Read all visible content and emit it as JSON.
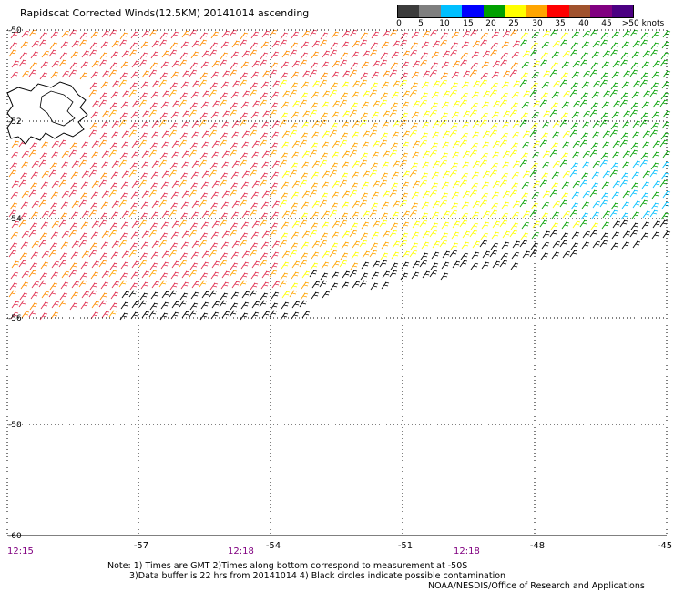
{
  "title": "Rapidscat Corrected Winds(12.5KM) 20141014 ascending",
  "legend": {
    "labels": [
      "0",
      "5",
      "10",
      "15",
      "20",
      "25",
      "30",
      "35",
      "40",
      "45",
      ">50 knots"
    ],
    "colors": [
      "#000000",
      "#7f7f7f",
      "#00bfff",
      "#0000ff",
      "#00a000",
      "#ffff00",
      "#ffa500",
      "#ff0000",
      "#8b0000",
      "#800080",
      "#4b0082"
    ]
  },
  "map": {
    "lat_labels": [
      "-50",
      "-52",
      "-54",
      "-56",
      "-58",
      "-60"
    ],
    "lon_labels": [
      "-57",
      "-54",
      "-51",
      "-48",
      "-45"
    ],
    "time_labels": [
      "12:15",
      "12:18",
      "12:18"
    ]
  },
  "notes": {
    "line1": "Note: 1) Times are GMT 2)Times along bottom correspond to measurement at -50S",
    "line2": "3)Data buffer is 22 hrs from 20141014 4) Black circles indicate possible contamination",
    "line3": "NOAA/NESDIS/Office of Research and Applications"
  }
}
